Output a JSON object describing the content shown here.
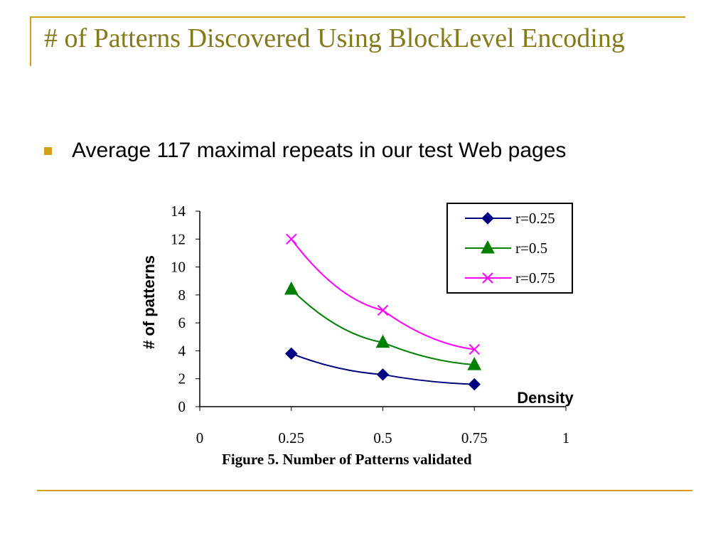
{
  "slide": {
    "title": "# of Patterns Discovered Using BlockLevel Encoding",
    "bullet": "Average 117 maximal repeats in our test Web pages",
    "caption": "Figure 5. Number of Patterns validated"
  },
  "colors": {
    "accent": "#d4a017",
    "title": "#857a1a"
  },
  "chart_data": {
    "type": "line",
    "xlabel": "Density",
    "ylabel": "# of patterns",
    "xlim": [
      0,
      1
    ],
    "ylim": [
      0,
      14
    ],
    "xticks": [
      "0",
      "0.25",
      "0.5",
      "0.75",
      "1"
    ],
    "yticks": [
      "0",
      "2",
      "4",
      "6",
      "8",
      "10",
      "12",
      "14"
    ],
    "legend_position": "top-right",
    "grid": false,
    "series": [
      {
        "name": "r=0.25",
        "color": "#000080",
        "marker": "diamond",
        "points": [
          [
            0.25,
            3.8
          ],
          [
            0.5,
            2.3
          ],
          [
            0.75,
            1.6
          ]
        ]
      },
      {
        "name": "r=0.5",
        "color": "#008000",
        "marker": "triangle",
        "points": [
          [
            0.25,
            8.4
          ],
          [
            0.5,
            4.6
          ],
          [
            0.75,
            3.0
          ]
        ]
      },
      {
        "name": "r=0.75",
        "color": "#ff00ff",
        "marker": "x",
        "points": [
          [
            0.25,
            12.0
          ],
          [
            0.5,
            6.9
          ],
          [
            0.75,
            4.1
          ]
        ]
      }
    ]
  }
}
